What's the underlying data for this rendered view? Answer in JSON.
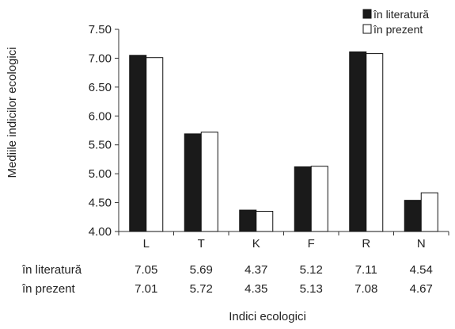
{
  "chart_data": {
    "type": "bar",
    "title": "",
    "xlabel": "Indici ecologici",
    "ylabel": "Mediile indicilor ecologici",
    "categories": [
      "L",
      "T",
      "K",
      "F",
      "R",
      "N"
    ],
    "series": [
      {
        "name": "în literatură",
        "values": [
          7.05,
          5.69,
          4.37,
          5.12,
          7.11,
          4.54
        ],
        "color": "#1a1a1a"
      },
      {
        "name": "în prezent",
        "values": [
          7.01,
          5.72,
          4.35,
          5.13,
          7.08,
          4.67
        ],
        "color": "#ffffff"
      }
    ],
    "ylim": [
      4.0,
      7.5
    ],
    "yticks": [
      "4.00",
      "4.50",
      "5.00",
      "5.50",
      "6.00",
      "6.50",
      "7.00",
      "7.50"
    ],
    "grid": false,
    "legend": "top-right",
    "data_table": {
      "rows": [
        {
          "label": "în literatură",
          "values": [
            "7.05",
            "5.69",
            "4.37",
            "5.12",
            "7.11",
            "4.54"
          ]
        },
        {
          "label": "în prezent",
          "values": [
            "7.01",
            "5.72",
            "4.35",
            "5.13",
            "7.08",
            "4.67"
          ]
        }
      ]
    }
  }
}
